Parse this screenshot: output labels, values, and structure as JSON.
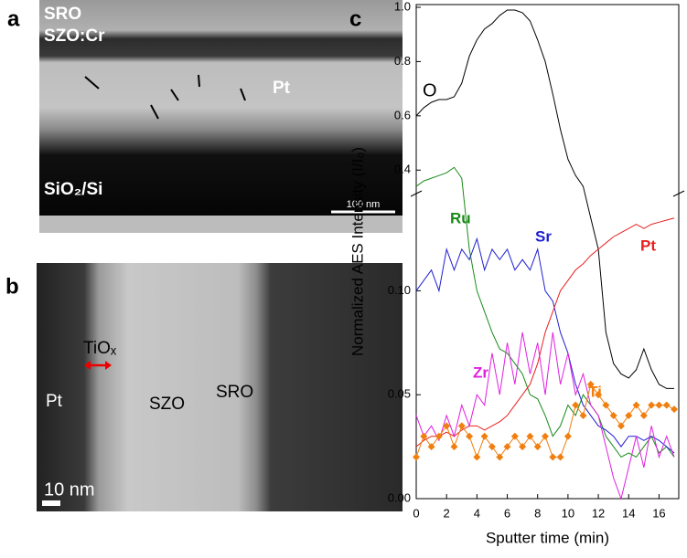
{
  "micrographs": {
    "a": {
      "panel": "a",
      "labels": [
        "SRO",
        "SZO:Cr",
        "Pt",
        "SiO₂/Si"
      ],
      "scale_bar": "100 nm"
    },
    "b": {
      "panel": "b",
      "labels": [
        "TiOₓ",
        "Pt",
        "SZO",
        "SRO"
      ],
      "scale_bar": "10 nm"
    }
  },
  "chart_data": {
    "type": "line",
    "panel": "c",
    "x_label": "Sputter time (min)",
    "y_label": "Normalized AES Intensity (I/I₀)",
    "x": [
      0,
      0.5,
      1,
      1.5,
      2,
      2.5,
      3,
      3.5,
      4,
      4.5,
      5,
      5.5,
      6,
      6.5,
      7,
      7.5,
      8,
      8.5,
      9,
      9.5,
      10,
      10.5,
      11,
      11.5,
      12,
      12.5,
      13,
      13.5,
      14,
      14.5,
      15,
      15.5,
      16,
      16.5,
      17
    ],
    "xlim": [
      0,
      17.3
    ],
    "xticks": [
      0,
      2,
      4,
      6,
      8,
      10,
      12,
      14,
      16
    ],
    "axis_segments": [
      {
        "ylim": [
          0,
          0.145
        ],
        "yticks": [
          {
            "value": 0,
            "label": "0.00"
          },
          {
            "value": 0.05,
            "label": "0.05"
          },
          {
            "value": 0.1,
            "label": "0.10"
          }
        ]
      },
      {
        "ylim": [
          0.32,
          1.0
        ],
        "yticks": [
          0.4,
          0.6,
          0.8,
          {
            "value": 1.0,
            "label": "1.0"
          }
        ]
      }
    ],
    "series": [
      {
        "name": "O",
        "color": "#000000",
        "values": [
          0.6,
          0.63,
          0.65,
          0.66,
          0.66,
          0.67,
          0.72,
          0.82,
          0.88,
          0.92,
          0.94,
          0.97,
          0.99,
          0.99,
          0.98,
          0.95,
          0.88,
          0.8,
          0.68,
          0.55,
          0.44,
          0.38,
          0.34,
          0.135,
          0.12,
          0.08,
          0.065,
          0.06,
          0.058,
          0.062,
          0.072,
          0.062,
          0.055,
          0.053,
          0.053
        ]
      },
      {
        "name": "Ru",
        "color": "#1a8a1a",
        "values": [
          0.34,
          0.36,
          0.37,
          0.38,
          0.39,
          0.41,
          0.37,
          0.12,
          0.1,
          0.09,
          0.08,
          0.072,
          0.07,
          0.065,
          0.06,
          0.05,
          0.048,
          0.04,
          0.03,
          0.035,
          0.045,
          0.04,
          0.05,
          0.045,
          0.04,
          0.03,
          0.025,
          0.02,
          0.022,
          0.02,
          0.025,
          0.03,
          0.022,
          0.025,
          0.02
        ]
      },
      {
        "name": "Sr",
        "color": "#1f1fd0",
        "values": [
          0.1,
          0.105,
          0.11,
          0.1,
          0.12,
          0.11,
          0.12,
          0.115,
          0.125,
          0.11,
          0.12,
          0.115,
          0.12,
          0.11,
          0.115,
          0.11,
          0.12,
          0.1,
          0.095,
          0.08,
          0.07,
          0.055,
          0.045,
          0.04,
          0.035,
          0.033,
          0.03,
          0.025,
          0.03,
          0.03,
          0.028,
          0.03,
          0.028,
          0.025,
          0.022
        ]
      },
      {
        "name": "Pt",
        "color": "#e82020",
        "values": [
          0.025,
          0.028,
          0.03,
          0.03,
          0.032,
          0.03,
          0.033,
          0.035,
          0.035,
          0.033,
          0.035,
          0.037,
          0.04,
          0.045,
          0.05,
          0.055,
          0.065,
          0.08,
          0.09,
          0.1,
          0.105,
          0.11,
          0.113,
          0.117,
          0.12,
          0.123,
          0.126,
          0.128,
          0.13,
          0.132,
          0.13,
          0.132,
          0.133,
          0.134,
          0.135
        ]
      },
      {
        "name": "Zr",
        "color": "#e020e0",
        "values": [
          0.04,
          0.03,
          0.035,
          0.028,
          0.04,
          0.03,
          0.045,
          0.035,
          0.05,
          0.045,
          0.07,
          0.05,
          0.075,
          0.055,
          0.08,
          0.06,
          0.075,
          0.05,
          0.08,
          0.055,
          0.07,
          0.05,
          0.06,
          0.045,
          0.04,
          0.025,
          0.01,
          0,
          0.015,
          0.03,
          0.015,
          0.035,
          0.02,
          0.03,
          0.02
        ]
      },
      {
        "name": "Ti",
        "color": "#f07f10",
        "marker": "diamond",
        "values": [
          0.02,
          0.03,
          0.025,
          0.03,
          0.035,
          0.025,
          0.035,
          0.03,
          0.02,
          0.03,
          0.025,
          0.02,
          0.025,
          0.03,
          0.025,
          0.03,
          0.025,
          0.03,
          0.02,
          0.02,
          0.03,
          0.045,
          0.04,
          0.055,
          0.05,
          0.045,
          0.04,
          0.035,
          0.04,
          0.045,
          0.04,
          0.045,
          0.045,
          0.045,
          0.043
        ]
      }
    ]
  }
}
